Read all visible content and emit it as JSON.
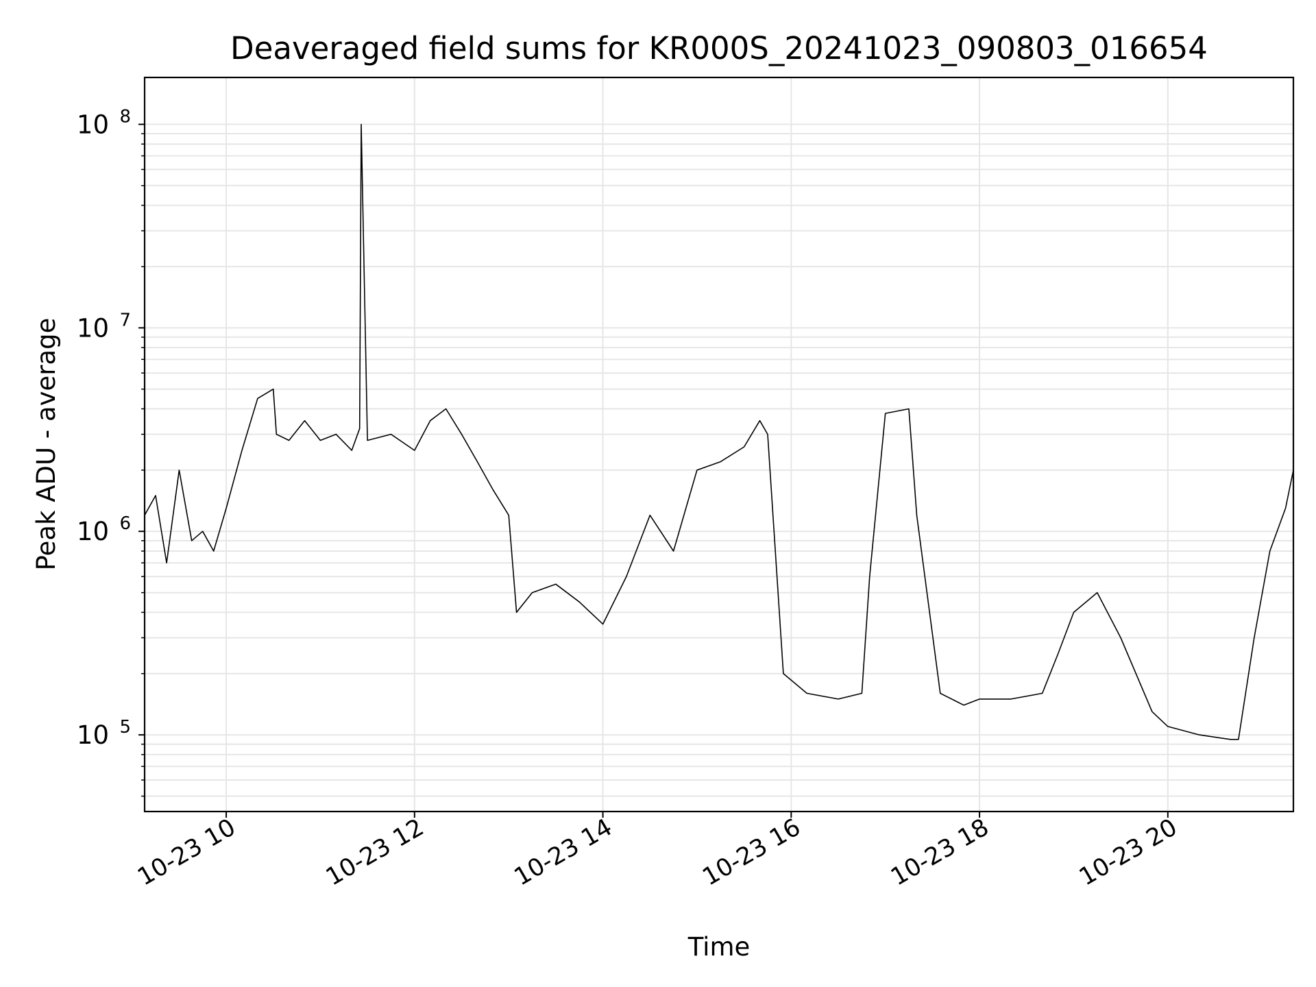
{
  "chart_data": {
    "type": "line",
    "title": "Deaveraged field sums for KR000S_20241023_090803_016654",
    "xlabel": "Time",
    "ylabel": "Peak ADU - average",
    "yscale": "log",
    "grid": true,
    "colors": {
      "line": "#000000",
      "grid": "#e6e6e6",
      "frame": "#000000"
    },
    "xlim": [
      "2024-10-23 09:08",
      "2024-10-23 21:20"
    ],
    "ylim": [
      42000,
      170000000
    ],
    "xticks": [
      {
        "value": "2024-10-23 10:00",
        "label": "10-23 10"
      },
      {
        "value": "2024-10-23 12:00",
        "label": "10-23 12"
      },
      {
        "value": "2024-10-23 14:00",
        "label": "10-23 14"
      },
      {
        "value": "2024-10-23 16:00",
        "label": "10-23 16"
      },
      {
        "value": "2024-10-23 18:00",
        "label": "10-23 18"
      },
      {
        "value": "2024-10-23 20:00",
        "label": "10-23 20"
      }
    ],
    "yticks": [
      {
        "value": 100000,
        "base": "10",
        "exp": "5"
      },
      {
        "value": 1000000,
        "base": "10",
        "exp": "6"
      },
      {
        "value": 10000000,
        "base": "10",
        "exp": "7"
      },
      {
        "value": 100000000,
        "base": "10",
        "exp": "8"
      }
    ],
    "series": [
      {
        "x": [
          "2024-10-23 09:08",
          "2024-10-23 09:15",
          "2024-10-23 09:22",
          "2024-10-23 09:30",
          "2024-10-23 09:38",
          "2024-10-23 09:45",
          "2024-10-23 09:52",
          "2024-10-23 10:00",
          "2024-10-23 10:10",
          "2024-10-23 10:20",
          "2024-10-23 10:30",
          "2024-10-23 10:32",
          "2024-10-23 10:40",
          "2024-10-23 10:50",
          "2024-10-23 11:00",
          "2024-10-23 11:10",
          "2024-10-23 11:20",
          "2024-10-23 11:25",
          "2024-10-23 11:26",
          "2024-10-23 11:30",
          "2024-10-23 11:45",
          "2024-10-23 12:00",
          "2024-10-23 12:10",
          "2024-10-23 12:20",
          "2024-10-23 12:30",
          "2024-10-23 12:40",
          "2024-10-23 12:50",
          "2024-10-23 13:00",
          "2024-10-23 13:05",
          "2024-10-23 13:15",
          "2024-10-23 13:30",
          "2024-10-23 13:45",
          "2024-10-23 14:00",
          "2024-10-23 14:15",
          "2024-10-23 14:30",
          "2024-10-23 14:45",
          "2024-10-23 15:00",
          "2024-10-23 15:15",
          "2024-10-23 15:30",
          "2024-10-23 15:40",
          "2024-10-23 15:45",
          "2024-10-23 15:55",
          "2024-10-23 16:10",
          "2024-10-23 16:30",
          "2024-10-23 16:45",
          "2024-10-23 16:50",
          "2024-10-23 17:00",
          "2024-10-23 17:15",
          "2024-10-23 17:20",
          "2024-10-23 17:35",
          "2024-10-23 17:50",
          "2024-10-23 18:00",
          "2024-10-23 18:20",
          "2024-10-23 18:40",
          "2024-10-23 18:50",
          "2024-10-23 19:00",
          "2024-10-23 19:15",
          "2024-10-23 19:30",
          "2024-10-23 19:50",
          "2024-10-23 20:00",
          "2024-10-23 20:20",
          "2024-10-23 20:40",
          "2024-10-23 20:45",
          "2024-10-23 20:55",
          "2024-10-23 21:05",
          "2024-10-23 21:15",
          "2024-10-23 21:20"
        ],
        "y": [
          1200000,
          1500000,
          700000,
          2000000,
          900000,
          1000000,
          800000,
          1300000,
          2500000,
          4500000,
          5000000,
          3000000,
          2800000,
          3500000,
          2800000,
          3000000,
          2500000,
          3200000,
          100000000,
          2800000,
          3000000,
          2500000,
          3500000,
          4000000,
          3000000,
          2200000,
          1600000,
          1200000,
          400000,
          500000,
          550000,
          450000,
          350000,
          600000,
          1200000,
          800000,
          2000000,
          2200000,
          2600000,
          3500000,
          3000000,
          200000,
          160000,
          150000,
          160000,
          600000,
          3800000,
          4000000,
          1200000,
          160000,
          140000,
          150000,
          150000,
          160000,
          250000,
          400000,
          500000,
          300000,
          130000,
          110000,
          100000,
          95000,
          95000,
          300000,
          800000,
          1300000,
          2000000
        ]
      }
    ]
  }
}
